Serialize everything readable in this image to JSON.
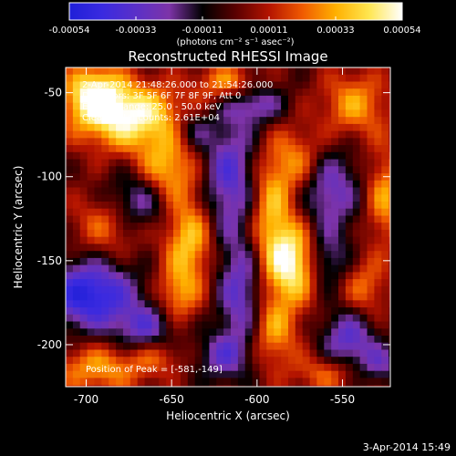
{
  "chart_data": {
    "type": "heatmap",
    "title": "Reconstructed RHESSI Image",
    "xlabel": "Heliocentric X (arcsec)",
    "ylabel": "Heliocentric Y (arcsec)",
    "xlim": [
      -712,
      -522
    ],
    "ylim": [
      -225,
      -35
    ],
    "x_ticks": [
      -700,
      -650,
      -600,
      -550
    ],
    "y_ticks": [
      -50,
      -100,
      -150,
      -200
    ],
    "colorbar": {
      "ticks": [
        "-0.00054",
        "-0.00033",
        "-0.00011",
        "0.00011",
        "0.00033",
        "0.00054"
      ],
      "range": [
        -0.00054,
        0.00054
      ],
      "unit_label": "(photons cm⁻² s⁻¹ asec⁻²)",
      "colors": [
        "#1f1fd8",
        "#3a2ae0",
        "#5a30c8",
        "#7d33a8",
        "#000000",
        "#5a0000",
        "#b41400",
        "#f05a00",
        "#ffb000",
        "#ffe650",
        "#ffffff"
      ]
    },
    "annotations": [
      "2-Apr-2014 21:48:26.000 to 21:54:26.000",
      "Detectors: 3F 5F 6F 7F 8F 9F, Att 0",
      "Energy Range: 25.0 - 50.0 keV",
      "Clean.  Total counts: 2.61E+04"
    ],
    "peak_label": "Position of Peak = [-581,-149]",
    "peak": [
      -581,
      -149
    ],
    "blobs": [
      {
        "x": -581,
        "y": -149,
        "sx": 11,
        "sy": 16,
        "v": 1.0
      },
      {
        "x": -594,
        "y": -118,
        "sx": 9,
        "sy": 22,
        "v": 0.6
      },
      {
        "x": -578,
        "y": -88,
        "sx": 12,
        "sy": 14,
        "v": 0.5
      },
      {
        "x": -592,
        "y": -190,
        "sx": 10,
        "sy": 16,
        "v": 0.55
      },
      {
        "x": -560,
        "y": -215,
        "sx": 14,
        "sy": 8,
        "v": 0.45
      },
      {
        "x": -676,
        "y": -62,
        "sx": 22,
        "sy": 14,
        "v": 0.95
      },
      {
        "x": -698,
        "y": -48,
        "sx": 12,
        "sy": 12,
        "v": 0.8
      },
      {
        "x": -655,
        "y": -95,
        "sx": 12,
        "sy": 14,
        "v": 0.65
      },
      {
        "x": -642,
        "y": -135,
        "sx": 10,
        "sy": 18,
        "v": 0.7
      },
      {
        "x": -648,
        "y": -168,
        "sx": 9,
        "sy": 12,
        "v": 0.5
      },
      {
        "x": -690,
        "y": -125,
        "sx": 14,
        "sy": 14,
        "v": 0.45
      },
      {
        "x": -695,
        "y": -212,
        "sx": 20,
        "sy": 10,
        "v": 0.55
      },
      {
        "x": -620,
        "y": -42,
        "sx": 12,
        "sy": 8,
        "v": 0.55
      },
      {
        "x": -545,
        "y": -55,
        "sx": 14,
        "sy": 14,
        "v": 0.55
      },
      {
        "x": -527,
        "y": -110,
        "sx": 8,
        "sy": 20,
        "v": 0.55
      },
      {
        "x": -540,
        "y": -165,
        "sx": 10,
        "sy": 14,
        "v": 0.45
      },
      {
        "x": -660,
        "y": -205,
        "sx": 12,
        "sy": 8,
        "v": 0.3
      },
      {
        "x": -700,
        "y": -168,
        "sx": 18,
        "sy": 14,
        "v": -0.95
      },
      {
        "x": -668,
        "y": -188,
        "sx": 12,
        "sy": 10,
        "v": -0.55
      },
      {
        "x": -672,
        "y": -112,
        "sx": 14,
        "sy": 12,
        "v": -0.6
      },
      {
        "x": -618,
        "y": -98,
        "sx": 11,
        "sy": 26,
        "v": -0.65
      },
      {
        "x": -612,
        "y": -168,
        "sx": 9,
        "sy": 22,
        "v": -0.6
      },
      {
        "x": -622,
        "y": -205,
        "sx": 11,
        "sy": 10,
        "v": -0.5
      },
      {
        "x": -603,
        "y": -55,
        "sx": 12,
        "sy": 8,
        "v": -0.5
      },
      {
        "x": -560,
        "y": -105,
        "sx": 12,
        "sy": 18,
        "v": -0.6
      },
      {
        "x": -562,
        "y": -148,
        "sx": 10,
        "sy": 12,
        "v": -0.5
      },
      {
        "x": -548,
        "y": -195,
        "sx": 11,
        "sy": 14,
        "v": -0.65
      },
      {
        "x": -530,
        "y": -210,
        "sx": 8,
        "sy": 8,
        "v": -0.4
      },
      {
        "x": -640,
        "y": -70,
        "sx": 8,
        "sy": 8,
        "v": -0.4
      }
    ]
  },
  "footer_timestamp": "3-Apr-2014 15:49"
}
